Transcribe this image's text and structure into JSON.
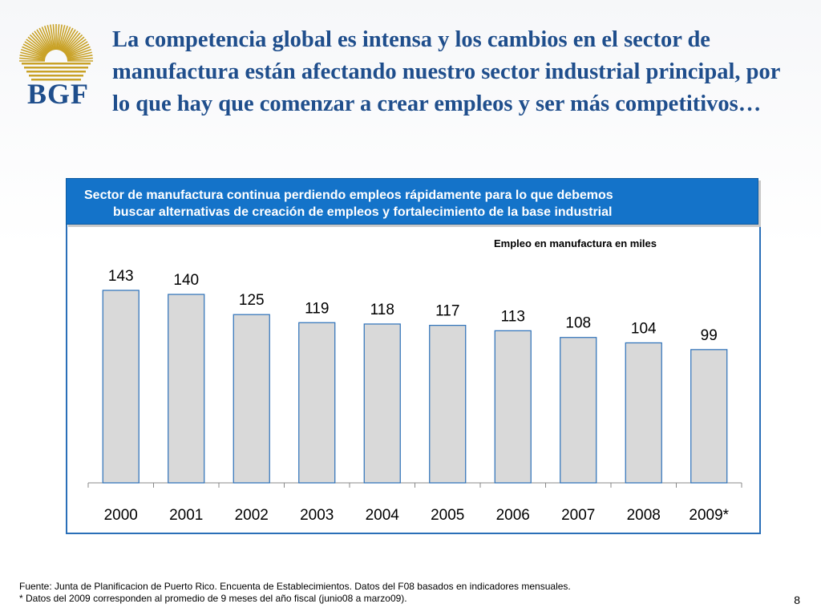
{
  "logo": {
    "text": "BGF",
    "color": "#c9a227"
  },
  "headline": "La competencia global es intensa y los cambios en el sector de manufactura están afectando nuestro sector industrial principal, por lo que hay que comenzar a crear empleos y ser más competitivos…",
  "banner": {
    "line1": "Sector de manufactura continua perdiendo empleos rápidamente para lo que debemos",
    "line2": "buscar alternativas de creación de empleos y fortalecimiento de la base industrial"
  },
  "chart_data": {
    "type": "bar",
    "title": "Empleo en manufactura en miles",
    "categories": [
      "2000",
      "2001",
      "2002",
      "2003",
      "2004",
      "2005",
      "2006",
      "2007",
      "2008",
      "2009*"
    ],
    "values": [
      143,
      140,
      125,
      119,
      118,
      117,
      113,
      108,
      104,
      99
    ],
    "ylim": [
      0,
      143
    ],
    "grid": false,
    "legend": "none",
    "bar_color": "#d9d9d9",
    "bar_border_color": "#2a6fb8"
  },
  "footer": {
    "source": "Fuente: Junta de Planificacion de Puerto Rico. Encuenta de Establecimientos. Datos del F08 basados en indicadores mensuales.",
    "note": "* Datos del 2009 corresponden al promedio de 9 meses del año fiscal (junio08 a marzo09)."
  },
  "page_number": "8"
}
